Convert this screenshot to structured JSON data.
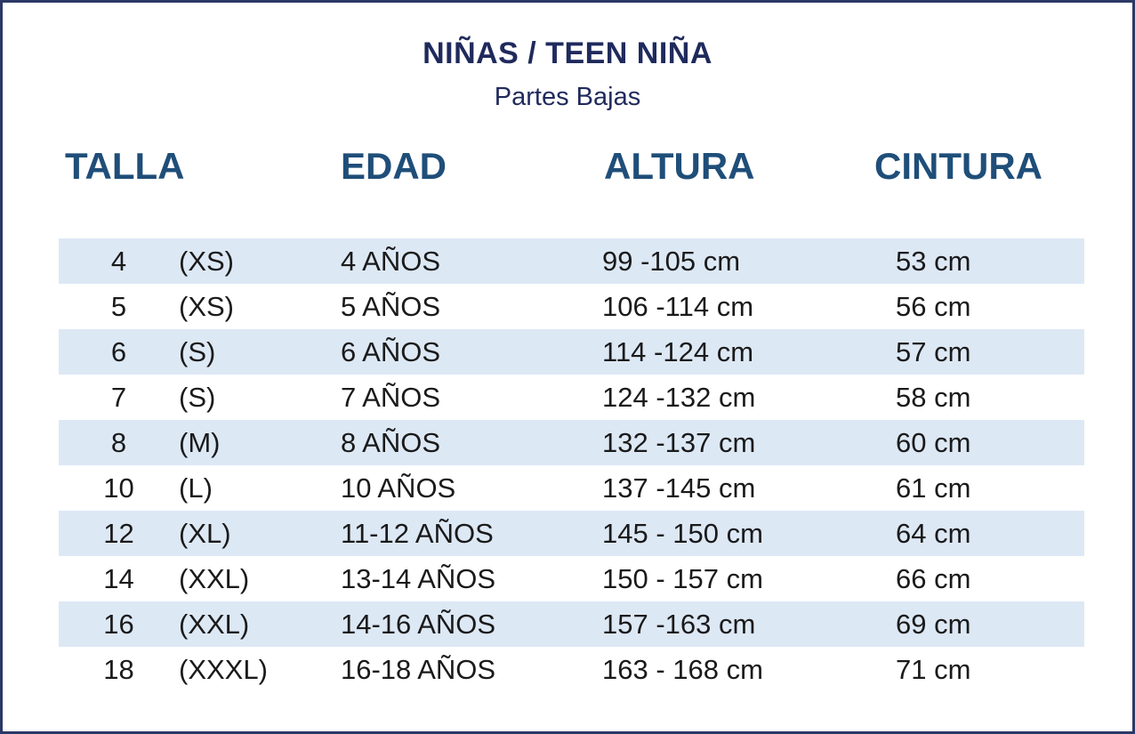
{
  "title": "NIÑAS / TEEN NIÑA",
  "subtitle": "Partes Bajas",
  "headers": {
    "talla": "TALLA",
    "edad": "EDAD",
    "altura": "ALTURA",
    "cintura": "CINTURA"
  },
  "rows": [
    {
      "num": "4",
      "label": "(XS)",
      "edad": "4 AÑOS",
      "altura": "99 -105 cm",
      "cintura": "53 cm",
      "shaded": true
    },
    {
      "num": "5",
      "label": "(XS)",
      "edad": "5 AÑOS",
      "altura": "106 -114 cm",
      "cintura": "56 cm",
      "shaded": false
    },
    {
      "num": "6",
      "label": "(S)",
      "edad": "6 AÑOS",
      "altura": "114 -124 cm",
      "cintura": "57 cm",
      "shaded": true
    },
    {
      "num": "7",
      "label": "(S)",
      "edad": "7 AÑOS",
      "altura": "124 -132 cm",
      "cintura": "58 cm",
      "shaded": false
    },
    {
      "num": "8",
      "label": "(M)",
      "edad": "8 AÑOS",
      "altura": "132 -137 cm",
      "cintura": "60 cm",
      "shaded": true
    },
    {
      "num": "10",
      "label": "(L)",
      "edad": "10 AÑOS",
      "altura": "137 -145 cm",
      "cintura": "61 cm",
      "shaded": false
    },
    {
      "num": "12",
      "label": "(XL)",
      "edad": "11-12 AÑOS",
      "altura": "145 - 150 cm",
      "cintura": "64 cm",
      "shaded": true
    },
    {
      "num": "14",
      "label": "(XXL)",
      "edad": "13-14 AÑOS",
      "altura": "150 - 157 cm",
      "cintura": "66 cm",
      "shaded": false
    },
    {
      "num": "16",
      "label": "(XXL)",
      "edad": "14-16 AÑOS",
      "altura": "157 -163 cm",
      "cintura": "69 cm",
      "shaded": true
    },
    {
      "num": "18",
      "label": "(XXXL)",
      "edad": "16-18 AÑOS",
      "altura": "163 -  168 cm",
      "cintura": "71 cm",
      "shaded": false
    }
  ]
}
